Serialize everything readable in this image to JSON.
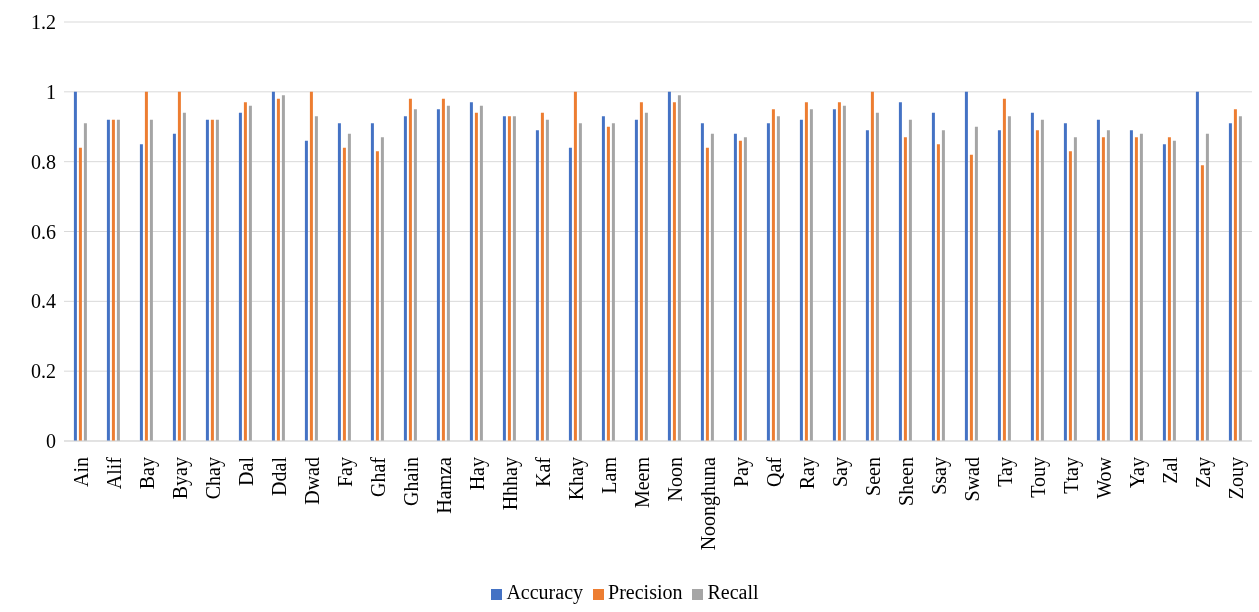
{
  "chart_data": {
    "type": "bar",
    "categories": [
      "Ain",
      "Alif",
      "Bay",
      "Byay",
      "Chay",
      "Dal",
      "Ddal",
      "Dwad",
      "Fay",
      "Ghaf",
      "Ghain",
      "Hamza",
      "Hay",
      "Hhhay",
      "Kaf",
      "Khay",
      "Lam",
      "Meem",
      "Noon",
      "Noonghuna",
      "Pay",
      "Qaf",
      "Ray",
      "Say",
      "Seen",
      "Sheen",
      "Ssay",
      "Swad",
      "Tay",
      "Touy",
      "Ttay",
      "Wow",
      "Yay",
      "Zal",
      "Zay",
      "Zouy"
    ],
    "series": [
      {
        "name": "Accuracy",
        "color": "#4472c4",
        "values": [
          1,
          0.92,
          0.85,
          0.88,
          0.92,
          0.94,
          1,
          0.86,
          0.91,
          0.91,
          0.93,
          0.95,
          0.97,
          0.93,
          0.89,
          0.84,
          0.93,
          0.92,
          1,
          0.91,
          0.88,
          0.91,
          0.92,
          0.95,
          0.89,
          0.97,
          0.94,
          1,
          0.89,
          0.94,
          0.91,
          0.92,
          0.89,
          0.85,
          1,
          0.91
        ]
      },
      {
        "name": "Precision",
        "color": "#ed7d31",
        "values": [
          0.84,
          0.92,
          1,
          1,
          0.92,
          0.97,
          0.98,
          1,
          0.84,
          0.83,
          0.98,
          0.98,
          0.94,
          0.93,
          0.94,
          1,
          0.9,
          0.97,
          0.97,
          0.84,
          0.86,
          0.95,
          0.97,
          0.97,
          1,
          0.87,
          0.85,
          0.82,
          0.98,
          0.89,
          0.83,
          0.87,
          0.87,
          0.87,
          0.79,
          0.95
        ]
      },
      {
        "name": "Recall",
        "color": "#a5a5a5",
        "values": [
          0.91,
          0.92,
          0.92,
          0.94,
          0.92,
          0.96,
          0.99,
          0.93,
          0.88,
          0.87,
          0.95,
          0.96,
          0.96,
          0.93,
          0.92,
          0.91,
          0.91,
          0.94,
          0.99,
          0.88,
          0.87,
          0.93,
          0.95,
          0.96,
          0.94,
          0.92,
          0.89,
          0.9,
          0.93,
          0.92,
          0.87,
          0.89,
          0.88,
          0.86,
          0.88,
          0.93
        ]
      }
    ],
    "ylim": [
      0,
      1.2
    ],
    "yticks": [
      0,
      0.2,
      0.4,
      0.6,
      0.8,
      1,
      1.2
    ],
    "grid": "y",
    "legend": "bottom"
  }
}
